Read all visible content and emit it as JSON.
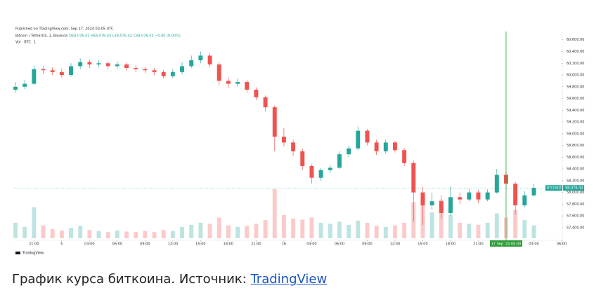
{
  "chart_data": {
    "type": "candlestick",
    "published": "Published on TradingView.com, Sep 17, 2024 03:05 UTC",
    "symbol": "Bitcoin / TetherUS, 1, Binance",
    "ohlc_text": "O58,076.42 H58,076.43 L58,076.42 C58,076.43 −0.00 (0.00%)",
    "volume_title": "Vol · BTC",
    "volume_value": "1",
    "up_color": "#26a69a",
    "down_color": "#ef5350",
    "x": [
      0,
      1,
      2,
      3,
      4,
      5,
      6,
      7,
      8,
      9,
      10,
      11,
      12,
      13,
      14,
      15,
      16,
      17,
      18,
      19,
      20,
      21,
      22,
      23,
      24,
      25,
      26,
      27,
      28,
      29,
      30,
      31,
      32,
      33,
      34,
      35,
      36,
      37,
      38,
      39,
      40,
      41,
      42,
      43,
      44,
      45,
      46,
      47,
      48,
      49,
      50,
      51,
      52,
      53,
      54,
      55,
      56
    ],
    "open": [
      59750,
      59800,
      59850,
      60100,
      60080,
      60050,
      60000,
      60150,
      60220,
      60180,
      60200,
      60150,
      60180,
      60120,
      60100,
      60080,
      60050,
      59980,
      60050,
      60150,
      60250,
      60330,
      60180,
      59900,
      59850,
      59880,
      59750,
      59620,
      59450,
      58950,
      58850,
      58700,
      58450,
      58250,
      58380,
      58420,
      58650,
      58750,
      59050,
      58850,
      58700,
      58850,
      58720,
      58500,
      58000,
      57780,
      57850,
      57650,
      57920,
      57880,
      58000,
      57880,
      58000,
      58300,
      58150,
      57780,
      57950
    ],
    "high": [
      59880,
      59920,
      60160,
      60150,
      60130,
      60110,
      60200,
      60280,
      60260,
      60250,
      60230,
      60230,
      60210,
      60170,
      60140,
      60120,
      60090,
      60100,
      60220,
      60330,
      60400,
      60380,
      60220,
      59960,
      59940,
      59920,
      59790,
      59650,
      59480,
      59100,
      58900,
      58750,
      58480,
      58420,
      58470,
      58700,
      58800,
      59120,
      59080,
      58900,
      58900,
      58880,
      58760,
      58540,
      58100,
      58000,
      57950,
      58100,
      58000,
      58060,
      58040,
      58050,
      58400,
      58350,
      58180,
      58020,
      58150
    ],
    "low": [
      59700,
      59760,
      59830,
      60020,
      60000,
      59950,
      59970,
      60100,
      60120,
      60130,
      60100,
      60110,
      60070,
      60050,
      60030,
      60000,
      59940,
      59950,
      60010,
      60120,
      60200,
      60130,
      59820,
      59780,
      59800,
      59700,
      59570,
      59380,
      58700,
      58780,
      58620,
      58380,
      58150,
      58200,
      58330,
      58400,
      58600,
      58720,
      58800,
      58640,
      58660,
      58680,
      58450,
      57500,
      57450,
      57700,
      57550,
      57600,
      57800,
      57850,
      57820,
      57850,
      57980,
      58100,
      57620,
      57750,
      57930
    ],
    "close": [
      59800,
      59850,
      60100,
      60080,
      60050,
      60000,
      60150,
      60220,
      60180,
      60200,
      60150,
      60180,
      60120,
      60100,
      60080,
      60050,
      59980,
      60050,
      60150,
      60250,
      60330,
      60180,
      59900,
      59850,
      59880,
      59750,
      59620,
      59450,
      58950,
      58850,
      58700,
      58450,
      58250,
      58380,
      58420,
      58650,
      58750,
      59050,
      58850,
      58700,
      58850,
      58720,
      58500,
      58000,
      57780,
      57850,
      57650,
      57920,
      57880,
      58000,
      57880,
      58000,
      58300,
      58150,
      57780,
      57950,
      58076.43
    ],
    "volume": [
      30,
      22,
      60,
      25,
      18,
      15,
      20,
      24,
      16,
      14,
      12,
      15,
      13,
      12,
      14,
      12,
      16,
      14,
      22,
      26,
      30,
      28,
      40,
      25,
      22,
      24,
      28,
      35,
      95,
      45,
      38,
      36,
      40,
      30,
      28,
      32,
      26,
      34,
      30,
      24,
      22,
      25,
      30,
      70,
      80,
      50,
      75,
      45,
      30,
      28,
      26,
      30,
      48,
      40,
      55,
      35,
      25
    ],
    "xlim": [
      0,
      59
    ],
    "xticks": [
      {
        "value": 2,
        "label": "21:00"
      },
      5,
      {
        "value": 8,
        "label": "03:00"
      },
      {
        "value": 11,
        "label": "06:00"
      },
      {
        "value": 14,
        "label": "09:00"
      },
      {
        "value": 17,
        "label": "12:00"
      },
      {
        "value": 20,
        "label": "15:00"
      },
      {
        "value": 23,
        "label": "18:00"
      },
      {
        "value": 26,
        "label": "21:00"
      },
      {
        "value": 29,
        "label": "16"
      },
      {
        "value": 32,
        "label": "03:00"
      },
      {
        "value": 35,
        "label": "06:00"
      },
      {
        "value": 38,
        "label": "09:00"
      },
      {
        "value": 41,
        "label": "12:00"
      },
      {
        "value": 44,
        "label": "15:00"
      },
      {
        "value": 47,
        "label": "18:00"
      },
      {
        "value": 50,
        "label": "21:00"
      },
      {
        "value": 56,
        "label": "03:00"
      },
      {
        "value": 59,
        "label": "06:00"
      }
    ],
    "crosshair": {
      "value": 53,
      "label": "17 Sep '24 00:00"
    },
    "ylim": [
      57220,
      60740
    ],
    "yticks": [
      {
        "value": 57400,
        "label": "57,400.00"
      },
      {
        "value": 57600,
        "label": "57,600.00"
      },
      {
        "value": 57800,
        "label": "57,800.00"
      },
      {
        "value": 58000,
        "label": "58,000.00"
      },
      {
        "value": 58200,
        "label": "58,200.00"
      },
      {
        "value": 58400,
        "label": "58,400.00"
      },
      {
        "value": 58600,
        "label": "58,600.00"
      },
      {
        "value": 58800,
        "label": "58,800.00"
      },
      {
        "value": 59000,
        "label": "59,000.00"
      },
      {
        "value": 59200,
        "label": "59,200.00"
      },
      {
        "value": 59400,
        "label": "59,400.00"
      },
      {
        "value": 59600,
        "label": "59,600.00"
      },
      {
        "value": 59800,
        "label": "59,800.00"
      },
      {
        "value": 60000,
        "label": "60,000.00"
      },
      {
        "value": 60200,
        "label": "60,200.00"
      },
      {
        "value": 60400,
        "label": "60,400.00"
      },
      {
        "value": 60600,
        "label": "60,600.00"
      }
    ],
    "price_label": {
      "symbol": "BTCUSDT",
      "value": 58076.43,
      "label": "58,076.43"
    },
    "brand": "TradingView"
  },
  "caption": {
    "text": "График курса биткоина. Источник: ",
    "link": "TradingView"
  }
}
